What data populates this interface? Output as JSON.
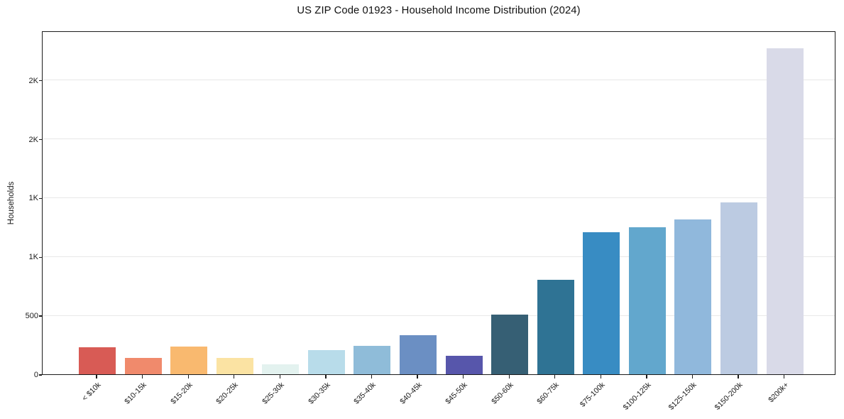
{
  "page": {
    "background": "#ffffff",
    "frame_color": "#1c1c1c",
    "gridline_color": "#e8e8e8"
  },
  "chart_data": {
    "type": "bar",
    "title": "US ZIP Code 01923 - Household Income Distribution (2024)",
    "xlabel": "",
    "ylabel": "Households",
    "categories": [
      "< $10k",
      "$10-15k",
      "$15-20k",
      "$20-25k",
      "$25-30k",
      "$30-35k",
      "$35-40k",
      "$40-45k",
      "$45-50k",
      "$50-60k",
      "$60-75k",
      "$75-100k",
      "$100-125k",
      "$125-150k",
      "$150-200k",
      "$200k+"
    ],
    "values": [
      228,
      139,
      235,
      139,
      85,
      205,
      241,
      330,
      157,
      505,
      800,
      1205,
      1247,
      1313,
      1458,
      2770
    ],
    "bar_colors": [
      "#d85b55",
      "#f08a6c",
      "#f9b96f",
      "#fbe3a3",
      "#e3f2ef",
      "#b8dcea",
      "#8fbcd9",
      "#6b8fc3",
      "#5756ab",
      "#365f74",
      "#2f7394",
      "#388cc3",
      "#62a7cd",
      "#90b8dc",
      "#bccbe2",
      "#d9dae8"
    ],
    "ylim": [
      0,
      2920
    ],
    "yticks": {
      "values": [
        0,
        500,
        1000,
        1500,
        2000,
        2500
      ],
      "labels": [
        "0",
        "500",
        "1K",
        "1K",
        "2K",
        "2K"
      ]
    },
    "grid": "horizontal",
    "legend": "none"
  }
}
